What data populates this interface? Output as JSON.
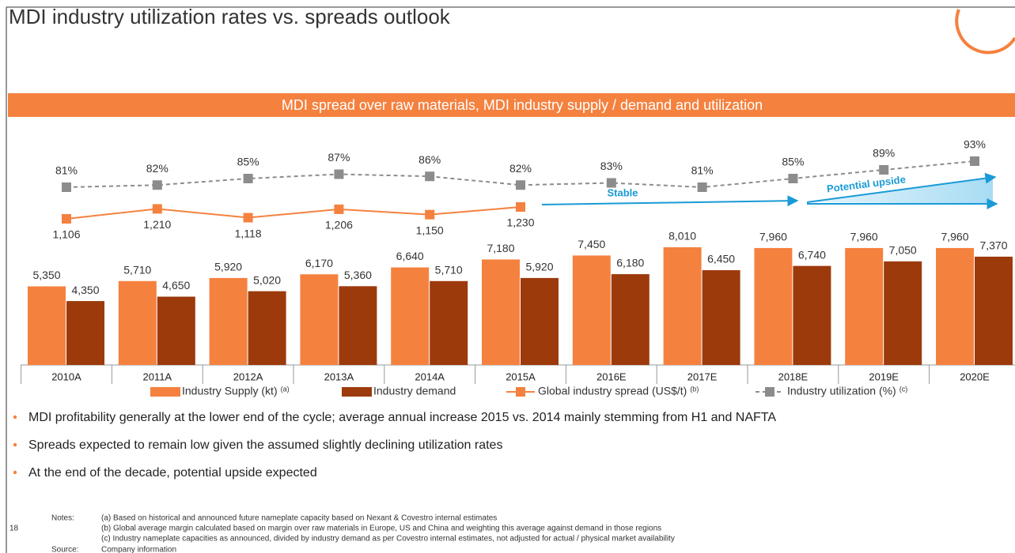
{
  "title": "MDI industry utilization rates vs. spreads outlook",
  "chart_data": {
    "type": "bar",
    "title": "MDI spread over raw materials, MDI industry supply / demand and utilization",
    "categories": [
      "2010A",
      "2011A",
      "2012A",
      "2013A",
      "2014A",
      "2015A",
      "2016E",
      "2017E",
      "2018E",
      "2019E",
      "2020E"
    ],
    "series": [
      {
        "name": "Industry Supply (kt)",
        "note": "(a)",
        "type": "bar",
        "color": "#f5813f",
        "values": [
          5350,
          5710,
          5920,
          6170,
          6640,
          7180,
          7450,
          8010,
          7960,
          7960,
          7960
        ],
        "value_labels": [
          "5,350",
          "5,710",
          "5,920",
          "6,170",
          "6,640",
          "7,180",
          "7,450",
          "8,010",
          "7,960",
          "7,960",
          "7,960"
        ]
      },
      {
        "name": "Industry demand",
        "type": "bar",
        "color": "#9c3a0c",
        "values": [
          4350,
          4650,
          5020,
          5360,
          5710,
          5920,
          6180,
          6450,
          6740,
          7050,
          7370
        ],
        "value_labels": [
          "4,350",
          "4,650",
          "5,020",
          "5,360",
          "5,710",
          "5,920",
          "6,180",
          "6,450",
          "6,740",
          "7,050",
          "7,370"
        ]
      },
      {
        "name": "Global industry spread (US$/t)",
        "note": "(b)",
        "type": "line",
        "color": "#f5813f",
        "values": [
          1106,
          1210,
          1118,
          1206,
          1150,
          1230,
          null,
          null,
          null,
          null,
          null
        ],
        "value_labels": [
          "1,106",
          "1,210",
          "1,118",
          "1,206",
          "1,150",
          "1,230",
          null,
          null,
          null,
          null,
          null
        ]
      },
      {
        "name": "Industry utilization (%)",
        "note": "(c)",
        "type": "line",
        "dashed": true,
        "color": "#8c8c8c",
        "values": [
          81,
          82,
          85,
          87,
          86,
          82,
          83,
          81,
          85,
          89,
          93
        ],
        "value_labels": [
          "81%",
          "82%",
          "85%",
          "87%",
          "86%",
          "82%",
          "83%",
          "81%",
          "85%",
          "89%",
          "93%"
        ]
      }
    ],
    "annotations": [
      "Stable",
      "Potential upside"
    ]
  },
  "bullets": [
    "MDI profitability generally at the lower end of the cycle; average annual increase 2015 vs. 2014 mainly stemming from H1 and NAFTA",
    "Spreads expected to remain low given the assumed slightly declining utilization rates",
    "At the end of the decade, potential upside expected"
  ],
  "notes": {
    "label": "Notes:",
    "lines": [
      "(a) Based on historical and announced future nameplate capacity based on Nexant & Covestro internal estimates",
      "(b) Global average margin calculated based on margin over raw materials in Europe, US and China and weighting this average against demand in those regions",
      "(c) Industry nameplate capacities as announced, divided by industry demand as per Covestro internal estimates, not adjusted for actual / physical market availability"
    ],
    "source_label": "Source:",
    "source": "Company information"
  },
  "page_number": "18"
}
